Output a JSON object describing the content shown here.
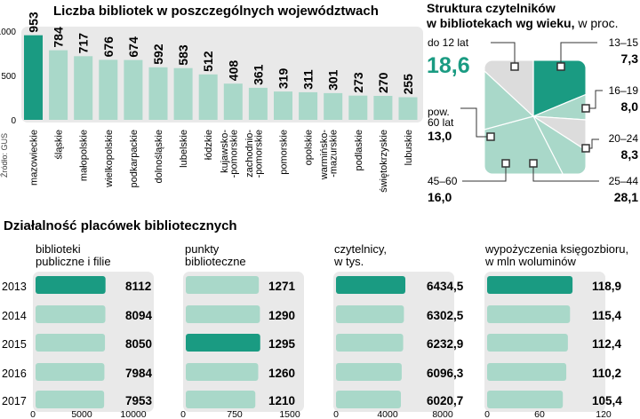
{
  "source": "Źródło: GUS",
  "colors": {
    "highlight": "#1a9b82",
    "bar": "#a9d8c9",
    "panel": "#e9e9e9",
    "light": "#dcdcdc"
  },
  "chart_data": [
    {
      "type": "bar",
      "title": "Liczba bibliotek w poszczególnych województwach",
      "categories": [
        "mazowieckie",
        "śląskie",
        "małopolskie",
        "wielkopolskie",
        "podkarpackie",
        "dolnośląskie",
        "lubelskie",
        "łódzkie",
        "kujawsko-\n-pomorskie",
        "zachodnio-\n-pomorskie",
        "pomorskie",
        "opolskie",
        "warmińsko-\n-mazurskie",
        "podlaskie",
        "świętokrzyskie",
        "lubuskie"
      ],
      "values": [
        953,
        784,
        717,
        676,
        674,
        592,
        583,
        512,
        408,
        361,
        319,
        311,
        301,
        273,
        270,
        255
      ],
      "highlight_index": 0,
      "yticks": [
        0,
        500,
        1000
      ],
      "ylim": [
        0,
        1000
      ],
      "grid": false
    },
    {
      "type": "pie",
      "title": "Struktura czytelników",
      "title_line2": "w bibliotekach wg wieku,",
      "title_suffix": " w proc.",
      "slices": [
        {
          "label": "do 12 lat",
          "value": 18.6,
          "value_label": "18,6",
          "highlight": true
        },
        {
          "label": "13–15",
          "value": 7.3,
          "value_label": "7,3"
        },
        {
          "label": "16–19",
          "value": 8.0,
          "value_label": "8,0"
        },
        {
          "label": "20–24",
          "value": 8.3,
          "value_label": "8,3"
        },
        {
          "label": "25–44",
          "value": 28.1,
          "value_label": "28,1"
        },
        {
          "label": "45–60",
          "value": 16.0,
          "value_label": "16,0"
        },
        {
          "label": "pow.\n60 lat",
          "value": 13.0,
          "value_label": "13,0"
        }
      ]
    },
    {
      "type": "bar",
      "title": "Działalność placówek bibliotecznych",
      "years": [
        "2013",
        "2014",
        "2015",
        "2016",
        "2017"
      ],
      "panels": [
        {
          "label": "biblioteki\npubliczne i filie",
          "values": [
            8112,
            8094,
            8050,
            7984,
            7953
          ],
          "value_labels": [
            "8112",
            "8094",
            "8050",
            "7984",
            "7953"
          ],
          "xlim": [
            0,
            10000
          ],
          "xticks": [
            "0",
            "5000",
            "10000"
          ],
          "highlight_index": 0
        },
        {
          "label": "punkty\nbiblioteczne",
          "values": [
            1271,
            1290,
            1295,
            1260,
            1210
          ],
          "value_labels": [
            "1271",
            "1290",
            "1295",
            "1260",
            "1210"
          ],
          "xlim": [
            0,
            1500
          ],
          "xticks": [
            "0",
            "750",
            "1500"
          ],
          "highlight_index": 2
        },
        {
          "label": "czytelnicy,\nw tys.",
          "values": [
            6434.5,
            6302.5,
            6232.9,
            6096.3,
            6020.7
          ],
          "value_labels": [
            "6434,5",
            "6302,5",
            "6232,9",
            "6096,3",
            "6020,7"
          ],
          "xlim": [
            0,
            8000
          ],
          "xticks": [
            "0",
            "4000",
            "8000"
          ],
          "highlight_index": 0
        },
        {
          "label": "wypożyczenia księgozbioru,\nw mln woluminów",
          "values": [
            118.9,
            115.4,
            112.4,
            110.2,
            105.4
          ],
          "value_labels": [
            "118,9",
            "115,4",
            "112,4",
            "110,2",
            "105,4"
          ],
          "xlim": [
            0,
            120
          ],
          "xticks": [
            "0",
            "60",
            "120"
          ],
          "highlight_index": 0
        }
      ]
    }
  ]
}
